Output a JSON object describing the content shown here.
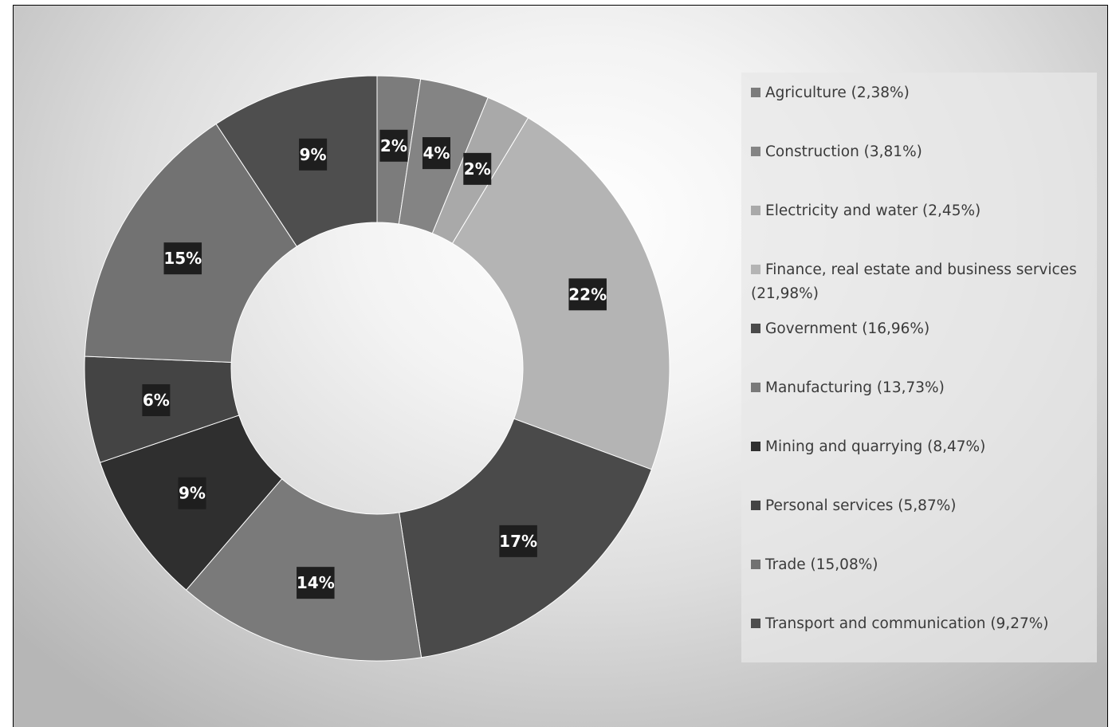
{
  "chart_data": {
    "type": "pie",
    "variant": "donut",
    "legend_position": "right",
    "series": [
      {
        "name": "Agriculture",
        "legend": "Agriculture (2,38%)",
        "value": 2.38,
        "label": "2%",
        "color": "#7c7c7c"
      },
      {
        "name": "Construction",
        "legend": "Construction (3,81%)",
        "value": 3.81,
        "label": "4%",
        "color": "#848484"
      },
      {
        "name": "Electricity and water",
        "legend": "Electricity and water (2,45%)",
        "value": 2.45,
        "label": "2%",
        "color": "#a9a9a9"
      },
      {
        "name": "Finance, real estate and business services",
        "legend": "Finance, real estate and business services (21,98%)",
        "value": 21.98,
        "label": "22%",
        "color": "#b4b4b4"
      },
      {
        "name": "Government",
        "legend": "Government (16,96%)",
        "value": 16.96,
        "label": "17%",
        "color": "#4a4a4a"
      },
      {
        "name": "Manufacturing",
        "legend": "Manufacturing (13,73%)",
        "value": 13.73,
        "label": "14%",
        "color": "#7a7a7a"
      },
      {
        "name": "Mining and quarrying",
        "legend": "Mining and quarrying (8,47%)",
        "value": 8.47,
        "label": "9%",
        "color": "#2f2f2f"
      },
      {
        "name": "Personal services",
        "legend": "Personal services (5,87%)",
        "value": 5.87,
        "label": "6%",
        "color": "#444444"
      },
      {
        "name": "Trade",
        "legend": "Trade (15,08%)",
        "value": 15.08,
        "label": "15%",
        "color": "#727272"
      },
      {
        "name": "Transport and communication",
        "legend": "Transport and communication (9,27%)",
        "value": 9.27,
        "label": "9%",
        "color": "#4e4e4e"
      }
    ]
  }
}
